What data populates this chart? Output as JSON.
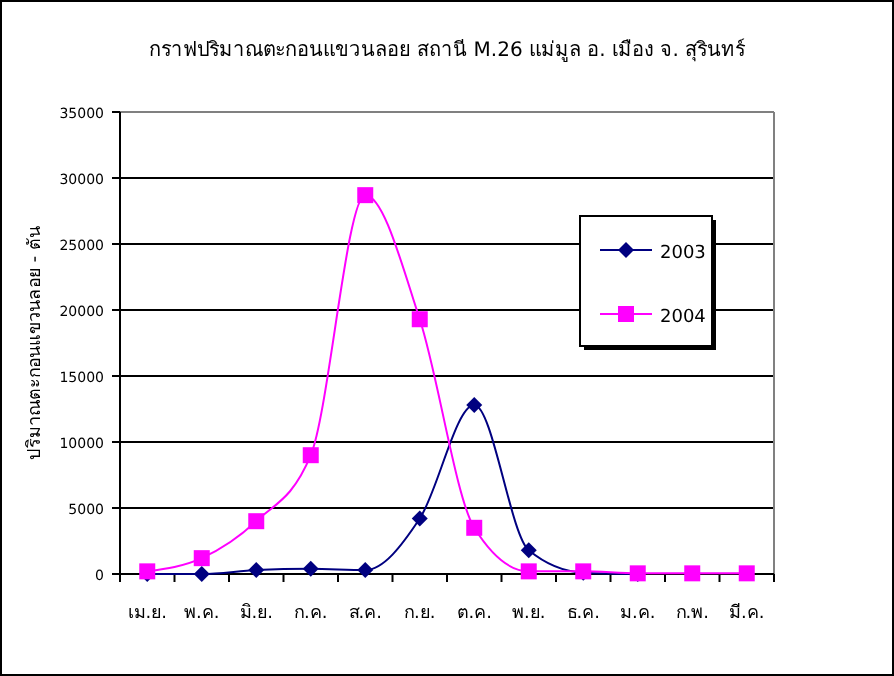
{
  "chart_data": {
    "type": "line",
    "title": "กราฟปริมาณตะกอนแขวนลอย สถานี M.26 แม่มูล อ. เมือง จ. สุรินทร์",
    "ylabel": "ปริมาณตะกอนแขวนลอย - ตัน",
    "categories": [
      "เม.ย.",
      "พ.ค.",
      "มิ.ย.",
      "ก.ค.",
      "ส.ค.",
      "ก.ย.",
      "ต.ค.",
      "พ.ย.",
      "ธ.ค.",
      "ม.ค.",
      "ก.พ.",
      "มี.ค."
    ],
    "series": [
      {
        "name": "2003",
        "color": "#000080",
        "marker": "diamond",
        "values": [
          0,
          0,
          300,
          400,
          300,
          4200,
          12800,
          1800,
          100,
          0,
          null,
          null
        ]
      },
      {
        "name": "2004",
        "color": "#ff00ff",
        "marker": "square",
        "values": [
          200,
          1200,
          4000,
          9000,
          28700,
          19300,
          3500,
          200,
          200,
          50,
          50,
          50
        ]
      }
    ],
    "ylim": [
      0,
      35000
    ],
    "yticks": [
      0,
      5000,
      10000,
      15000,
      20000,
      25000,
      30000,
      35000
    ],
    "grid": "y",
    "legend": "right"
  }
}
